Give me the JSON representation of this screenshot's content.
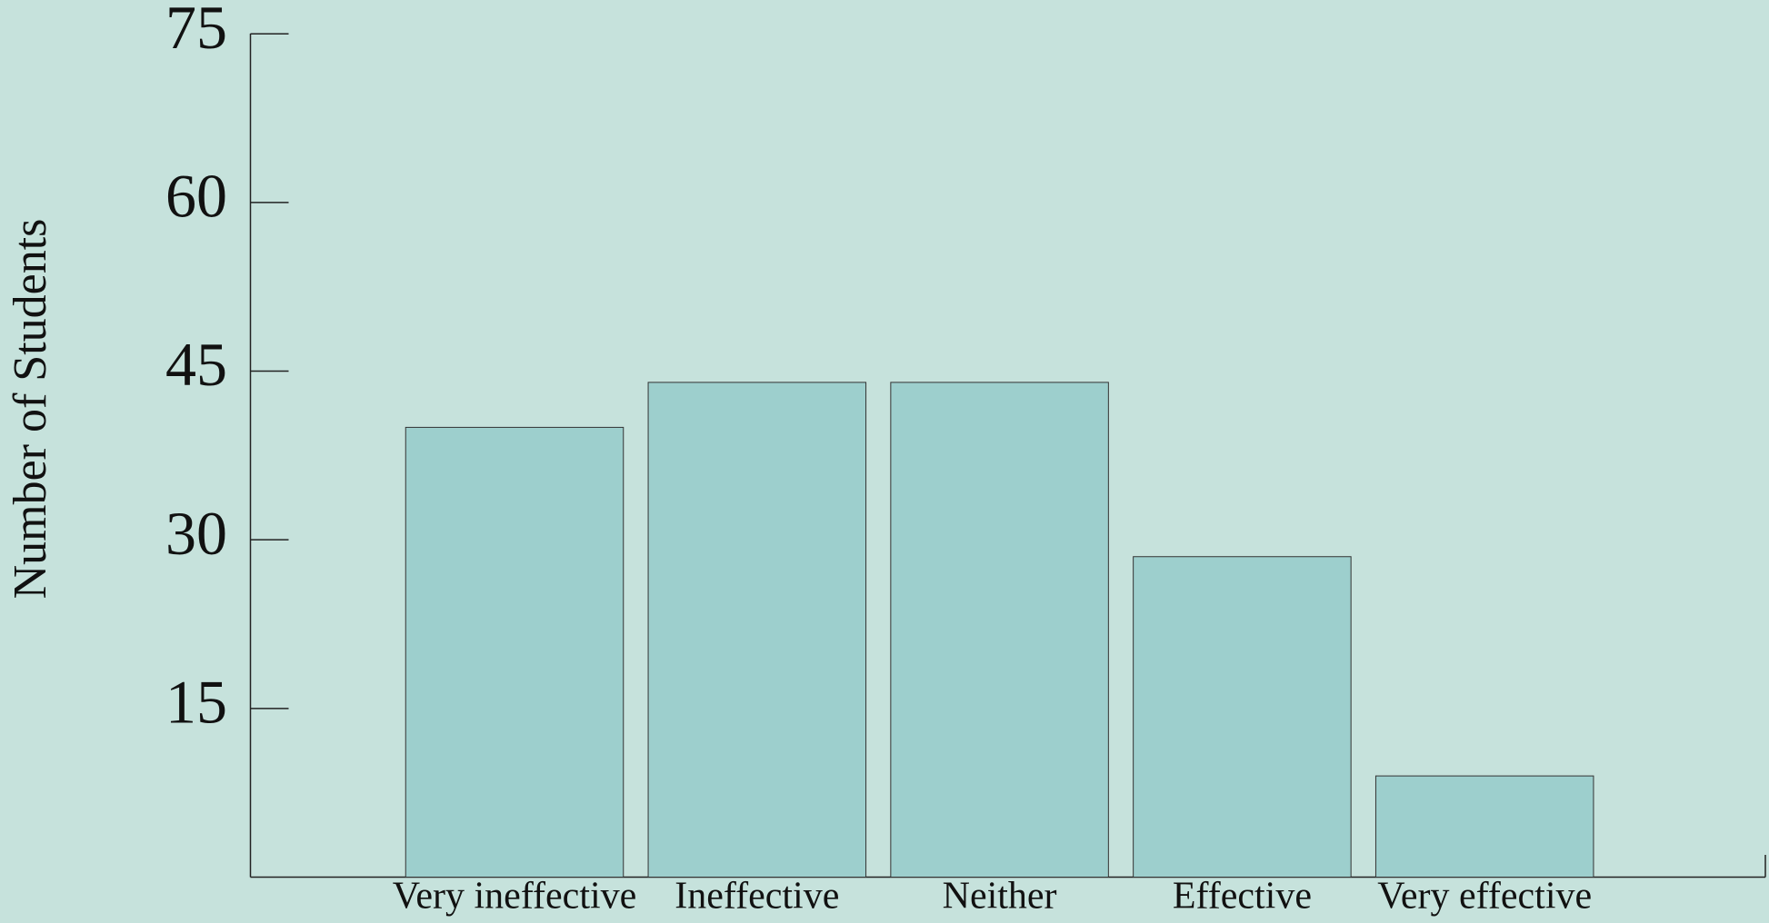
{
  "chart_data": {
    "type": "bar",
    "y_label": "Number of Students",
    "categories": [
      "Very ineffective",
      "Ineffective",
      "Neither",
      "Effective",
      "Very effective"
    ],
    "values": [
      40,
      44,
      44,
      28.5,
      9
    ],
    "color": "#9dcfcd",
    "ylim": [
      0,
      75
    ],
    "yticks": [
      15,
      30,
      45,
      60,
      75
    ]
  }
}
